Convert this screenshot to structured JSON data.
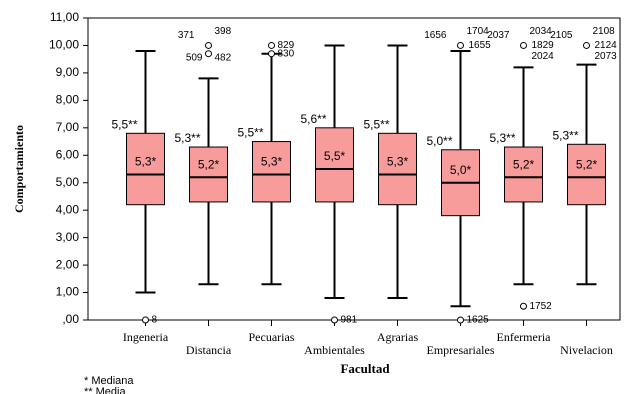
{
  "chart_data": {
    "type": "box",
    "y_label": "Comportamiento",
    "x_label": "Facultad",
    "categories": [
      "Ingeneria",
      "Distancia",
      "Pecuarias",
      "Ambientales",
      "Agrarias",
      "Empresariales",
      "Enfermeria",
      "Nivelacion"
    ],
    "color": "#f79b9b",
    "whisker_low": [
      1.0,
      1.3,
      1.3,
      0.8,
      0.8,
      0.5,
      1.3,
      1.3
    ],
    "q1": [
      4.2,
      4.3,
      4.3,
      4.3,
      4.2,
      3.8,
      4.3,
      4.2
    ],
    "median": [
      5.3,
      5.2,
      5.3,
      5.5,
      5.3,
      5.0,
      5.2,
      5.2
    ],
    "median_labels": [
      "5,3*",
      "5,2*",
      "5,3*",
      "5,5*",
      "5,3*",
      "5,0*",
      "5,2*",
      "5,2*"
    ],
    "q3": [
      6.8,
      6.3,
      6.5,
      7.0,
      6.8,
      6.2,
      6.3,
      6.4
    ],
    "whisker_high": [
      9.8,
      8.8,
      9.7,
      10.0,
      10.0,
      9.8,
      9.2,
      9.3
    ],
    "mean_labels": [
      "5,5**",
      "5,3**",
      "5,5**",
      "5,6**",
      "5,5**",
      "5,0**",
      "5,3**",
      "5,3**"
    ],
    "outliers": [
      {
        "category": "Ingeneria",
        "value": 0,
        "labels": [
          "8"
        ]
      },
      {
        "category": "Distancia",
        "value": 10.0,
        "labels": [
          "371",
          "398"
        ]
      },
      {
        "category": "Distancia",
        "value": 9.7,
        "labels": [
          "509",
          "482"
        ]
      },
      {
        "category": "Pecuarias",
        "value": 10.0,
        "labels": [
          "829"
        ]
      },
      {
        "category": "Pecuarias",
        "value": 9.7,
        "labels": [
          "830"
        ]
      },
      {
        "category": "Ambientales",
        "value": 0,
        "labels": [
          "981"
        ]
      },
      {
        "category": "Empresariales",
        "value": 10.0,
        "labels": [
          "1656",
          "1704",
          "1655"
        ]
      },
      {
        "category": "Empresariales",
        "value": 0,
        "labels": [
          "1625"
        ]
      },
      {
        "category": "Enfermeria",
        "value": 10.0,
        "labels": [
          "2037",
          "2034",
          "1829",
          "2024"
        ]
      },
      {
        "category": "Enfermeria",
        "value": 0.5,
        "labels": [
          "1752"
        ]
      },
      {
        "category": "Nivelacion",
        "value": 10.0,
        "labels": [
          "2105",
          "2108",
          "2124",
          "2073"
        ]
      }
    ],
    "ylim": [
      0,
      11
    ],
    "yticks": [
      {
        "value": 0,
        "label": ",00"
      },
      {
        "value": 1,
        "label": "1,00"
      },
      {
        "value": 2,
        "label": "2,00"
      },
      {
        "value": 3,
        "label": "3,00"
      },
      {
        "value": 4,
        "label": "4,00"
      },
      {
        "value": 5,
        "label": "5,00"
      },
      {
        "value": 6,
        "label": "6,00"
      },
      {
        "value": 7,
        "label": "7,00"
      },
      {
        "value": 8,
        "label": "8,00"
      },
      {
        "value": 9,
        "label": "9,00"
      },
      {
        "value": 10,
        "label": "10,00"
      },
      {
        "value": 11,
        "label": "11,00"
      }
    ],
    "footnotes": [
      "* Mediana",
      "** Media"
    ]
  }
}
